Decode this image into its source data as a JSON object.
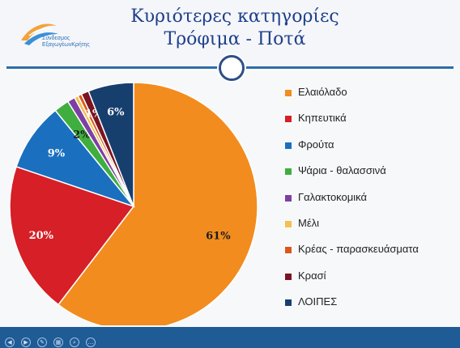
{
  "header": {
    "title_line1": "Κυριότερες κατηγορίες",
    "title_line2": "Τρόφιμα - Ποτά",
    "logo_text_line1": "Σύνδεσμος",
    "logo_text_line2": "ΕξαγωγέωνΚρήτης"
  },
  "colors": {
    "title": "#1f3f8c",
    "rule": "#2f6da8",
    "footer": "#1f5b95"
  },
  "chart_data": {
    "type": "pie",
    "categories": [
      "Ελαιόλαδο",
      "Κηπευτικά",
      "Φρούτα",
      "Ψάρια - θαλασσινά",
      "Γαλακτοκομικά",
      "Μέλι",
      "Κρέας - παρασκευάσματα",
      "Κρασί",
      "ΛΟΙΠΕΣ"
    ],
    "values": [
      61,
      20,
      9,
      2,
      1,
      0.5,
      0.5,
      1,
      6
    ],
    "data_labels": [
      "61%",
      "20%",
      "9%",
      "2%",
      "",
      "",
      "",
      "1%",
      "6%"
    ],
    "colors": [
      "#f28c1e",
      "#d61f26",
      "#1a6fbf",
      "#3fae3f",
      "#7e3fa5",
      "#f2c14e",
      "#d9591a",
      "#7a1420",
      "#173f6e"
    ],
    "legend_position": "right"
  },
  "footer": {
    "icons": [
      "back-icon",
      "forward-icon",
      "pen-icon",
      "slides-icon",
      "search-icon",
      "more-icon"
    ]
  }
}
